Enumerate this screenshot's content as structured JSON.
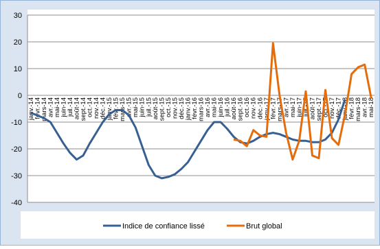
{
  "chart_data": {
    "type": "line",
    "categories": [
      "janv.-14",
      "févr.-14",
      "mars-14",
      "avr.-14",
      "mai-14",
      "juin-14",
      "juil.-14",
      "août-14",
      "sept.-14",
      "oct.-14",
      "nov.-14",
      "déc.-14",
      "janv.-15",
      "févr.-15",
      "mars-15",
      "avr.-15",
      "mai-15",
      "juin-15",
      "juil.-15",
      "août-15",
      "sept.-15",
      "oct.-15",
      "nov.-15",
      "déc.-15",
      "janv.-16",
      "févr.-16",
      "mars-16",
      "avr.-16",
      "mai-16",
      "juin-16",
      "juil.-16",
      "août-16",
      "sept.-16",
      "oct.-16",
      "nov.-16",
      "déc.-16",
      "janv.-17",
      "févr.-17",
      "mars-17",
      "avr.-17",
      "mai-17",
      "juin-17",
      "juil.-17",
      "août-17",
      "sept.-17",
      "oct.-17",
      "nov.-17",
      "déc.-17",
      "janv.-18",
      "févr.-18",
      "mars-18",
      "avr.-18",
      "mai-18"
    ],
    "series": [
      {
        "name": "Indice de confiance lissé",
        "color": "#376092",
        "values": [
          -6.5,
          -7.5,
          -8.5,
          -10,
          -14,
          -18,
          -21.5,
          -24,
          -22.5,
          -18,
          -14,
          -10,
          -7,
          -5.5,
          -5.5,
          -7.5,
          -12,
          -19,
          -26,
          -30,
          -31,
          -30.5,
          -29.5,
          -27.5,
          -25,
          -21,
          -17,
          -13,
          -10,
          -10,
          -12.5,
          -15.5,
          -17.5,
          -18,
          -17,
          -15.5,
          -14.5,
          -14,
          -14.5,
          -15.5,
          -16.5,
          -17,
          -17,
          -17.5,
          -17.5,
          -16.5,
          -14,
          -9,
          -1.5,
          null,
          null,
          null,
          null
        ]
      },
      {
        "name": "Brut global",
        "color": "#e46c0a",
        "values": [
          null,
          null,
          null,
          null,
          null,
          null,
          null,
          null,
          null,
          null,
          null,
          null,
          null,
          null,
          null,
          null,
          null,
          null,
          null,
          null,
          null,
          null,
          null,
          null,
          null,
          null,
          null,
          null,
          null,
          null,
          null,
          -16.5,
          -17,
          -19,
          -13,
          -15,
          -15.5,
          19.5,
          0,
          -14,
          -24,
          -17,
          1.5,
          -22.5,
          -23.5,
          2,
          -16,
          -18.5,
          -7,
          8,
          10.5,
          11.5,
          -1
        ]
      }
    ],
    "ylim": [
      -40,
      30
    ],
    "yticks": [
      -40,
      -30,
      -20,
      -10,
      0,
      10,
      20,
      30
    ],
    "grid": true,
    "legend": "bottom"
  }
}
